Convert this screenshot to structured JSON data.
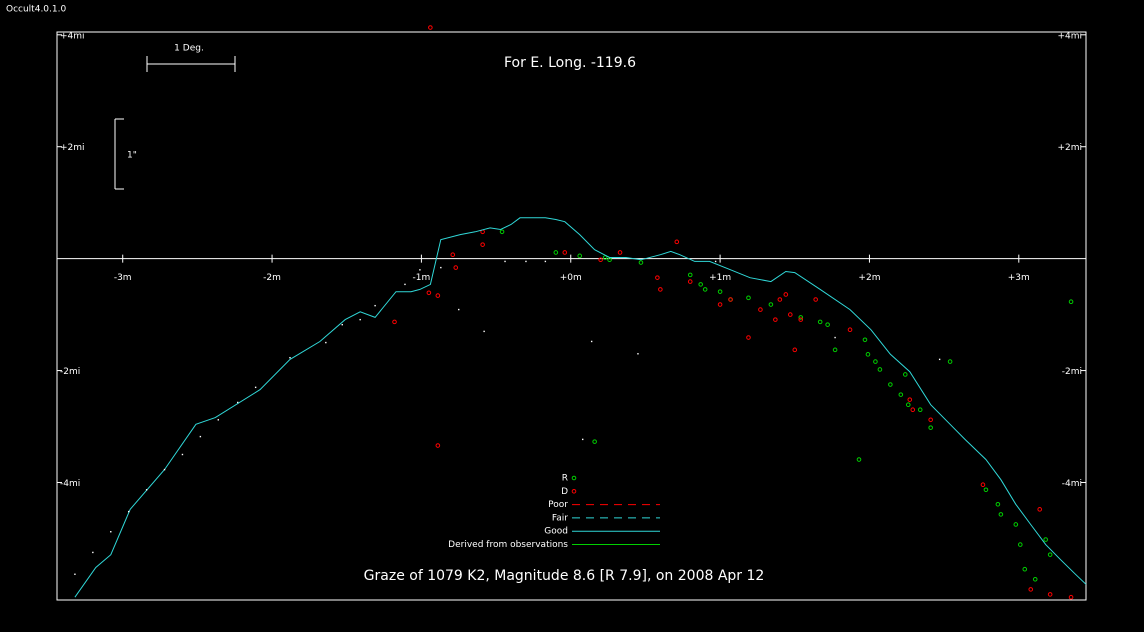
{
  "window_title": "Occult4.0.1.0",
  "scale_labels": {
    "degree": "1 Deg.",
    "arcsec": "1\""
  },
  "chart_data": {
    "type": "scatter",
    "title": "For E. Long. -119.6",
    "subtitle": "Graze of  1079 K2,  Magnitude 8.6 [R 7.9],  on 2008 Apr 12",
    "xlim": [
      -3.44,
      3.45
    ],
    "ylim": [
      -6.1,
      4.05
    ],
    "xticks": [
      {
        "value": -3,
        "label": "-3m"
      },
      {
        "value": -2,
        "label": "-2m"
      },
      {
        "value": -1,
        "label": "-1m"
      },
      {
        "value": 0,
        "label": "+0m"
      },
      {
        "value": 1,
        "label": "+1m"
      },
      {
        "value": 2,
        "label": "+2m"
      },
      {
        "value": 3,
        "label": "+3m"
      }
    ],
    "yticks": [
      {
        "value": 4,
        "label": "+4mi"
      },
      {
        "value": 2,
        "label": "+2mi"
      },
      {
        "value": -2,
        "label": "-2mi"
      },
      {
        "value": -4,
        "label": "-4mi"
      }
    ],
    "series": [
      {
        "name": "R",
        "color": "#00d000",
        "marker": "circle",
        "x": [
          -0.46,
          -0.1,
          0.06,
          0.23,
          0.47,
          0.87,
          0.9,
          1.07,
          1.19,
          1.34,
          1.54,
          1.67,
          1.72,
          1.77,
          1.97,
          1.99,
          2.04,
          2.07,
          2.14,
          2.24,
          2.21,
          2.26,
          2.34,
          2.41,
          2.54,
          1.93,
          0.16,
          2.78,
          2.86,
          2.88,
          2.98,
          3.01,
          3.18,
          3.21,
          3.04,
          3.11,
          3.35,
          0.26,
          0.8,
          1.0
        ],
        "y": [
          0.48,
          0.11,
          0.05,
          0.02,
          -0.07,
          -0.46,
          -0.55,
          -0.73,
          -0.7,
          -0.82,
          -1.05,
          -1.13,
          -1.18,
          -1.63,
          -1.45,
          -1.71,
          -1.84,
          -1.98,
          -2.25,
          -2.07,
          -2.43,
          -2.61,
          -2.7,
          -3.02,
          -1.84,
          -3.59,
          -3.27,
          -4.13,
          -4.39,
          -4.57,
          -4.75,
          -5.11,
          -5.02,
          -5.29,
          -5.55,
          -5.73,
          -0.77,
          -0.02,
          -0.29,
          -0.59
        ]
      },
      {
        "name": "D",
        "color": "#ff0000",
        "marker": "circle",
        "x": [
          -0.94,
          -0.59,
          -0.59,
          -0.79,
          -0.77,
          -0.95,
          -0.89,
          -1.18,
          -0.89,
          -0.04,
          0.2,
          0.33,
          0.58,
          0.6,
          0.71,
          0.8,
          1.0,
          1.07,
          1.19,
          1.27,
          1.37,
          1.4,
          1.44,
          1.47,
          1.54,
          1.5,
          1.64,
          1.87,
          2.27,
          2.29,
          2.41,
          2.76,
          3.14,
          3.08,
          3.21,
          3.35
        ],
        "y": [
          4.13,
          0.48,
          0.25,
          0.07,
          -0.16,
          -0.61,
          -0.66,
          -1.13,
          -3.34,
          0.11,
          -0.02,
          0.11,
          -0.34,
          -0.55,
          0.3,
          -0.41,
          -0.82,
          -0.73,
          -1.41,
          -0.91,
          -1.09,
          -0.73,
          -0.64,
          -1.0,
          -1.09,
          -1.63,
          -0.73,
          -1.27,
          -2.52,
          -2.7,
          -2.88,
          -4.04,
          -4.48,
          -5.91,
          -6.0,
          -6.05
        ]
      },
      {
        "name": "Poor",
        "color": "#ff0000",
        "line": "dashed",
        "x": [],
        "y": []
      },
      {
        "name": "Fair",
        "color": "#30d8d8",
        "line": "dashed",
        "x": [],
        "y": []
      },
      {
        "name": "Good",
        "color": "#30d8d8",
        "line": "solid",
        "x": [
          -3.32,
          -3.18,
          -3.08,
          -2.95,
          -2.72,
          -2.51,
          -2.38,
          -2.08,
          -1.88,
          -1.68,
          -1.51,
          -1.41,
          -1.31,
          -1.17,
          -1.07,
          -1.01,
          -0.94,
          -0.87,
          -0.74,
          -0.64,
          -0.54,
          -0.47,
          -0.4,
          -0.34,
          -0.27,
          -0.17,
          -0.1,
          -0.04,
          0.06,
          0.16,
          0.26,
          0.37,
          0.47,
          0.6,
          0.67,
          0.73,
          0.83,
          0.93,
          1.07,
          1.2,
          1.34,
          1.44,
          1.5,
          1.67,
          1.87,
          2.01,
          2.14,
          2.27,
          2.41,
          2.54,
          2.64,
          2.78,
          2.88,
          2.98,
          3.08,
          3.18,
          3.28,
          3.38,
          3.45
        ],
        "y": [
          -6.05,
          -5.52,
          -5.29,
          -4.48,
          -3.77,
          -2.96,
          -2.84,
          -2.34,
          -1.8,
          -1.48,
          -1.09,
          -0.95,
          -1.05,
          -0.59,
          -0.59,
          -0.55,
          -0.46,
          0.34,
          0.43,
          0.48,
          0.55,
          0.52,
          0.61,
          0.73,
          0.73,
          0.73,
          0.7,
          0.66,
          0.43,
          0.16,
          0.02,
          0.02,
          -0.02,
          0.07,
          0.13,
          0.07,
          -0.05,
          -0.05,
          -0.2,
          -0.34,
          -0.41,
          -0.23,
          -0.25,
          -0.55,
          -0.91,
          -1.27,
          -1.71,
          -2.02,
          -2.61,
          -2.96,
          -3.23,
          -3.59,
          -3.95,
          -4.39,
          -4.75,
          -5.11,
          -5.38,
          -5.64,
          -5.82
        ]
      },
      {
        "name": "Derived from observations",
        "color": "#00d000",
        "line": "solid",
        "x": [],
        "y": []
      },
      {
        "color": "#ffffff",
        "marker": "dot",
        "x": [
          -3.32,
          -3.2,
          -3.08,
          -2.96,
          -2.84,
          -2.72,
          -2.6,
          -2.48,
          -2.36,
          -2.23,
          -2.11,
          -1.88,
          -1.64,
          -1.53,
          -1.41,
          -1.31,
          -1.11,
          -1.01,
          -0.87,
          -0.75,
          -0.58,
          -0.44,
          -0.3,
          -0.17,
          0.14,
          0.45,
          0.08,
          0.97,
          1.77,
          2.47
        ],
        "y": [
          -5.64,
          -5.25,
          -4.88,
          -4.52,
          -4.13,
          -3.77,
          -3.5,
          -3.18,
          -2.88,
          -2.57,
          -2.3,
          -1.77,
          -1.5,
          -1.18,
          -1.09,
          -0.84,
          -0.46,
          -0.2,
          -0.16,
          -0.91,
          -1.3,
          -0.05,
          -0.05,
          -0.05,
          -1.48,
          -1.7,
          -3.23,
          -0.05,
          -1.41,
          -1.8
        ]
      }
    ]
  }
}
